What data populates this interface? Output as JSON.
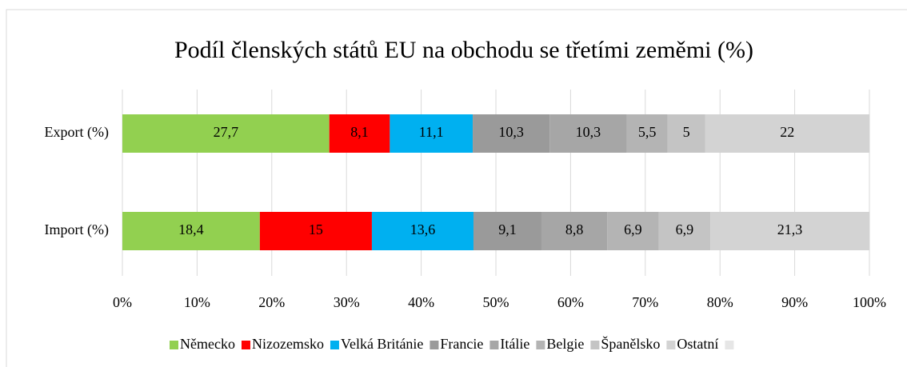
{
  "chart_data": {
    "type": "stacked-bar-horizontal",
    "title": "Podíl členských států EU na obchodu se třetími zeměmi (%)",
    "categories": [
      "Export (%)",
      "Import (%)"
    ],
    "series": [
      {
        "name": "Německo",
        "color": "#92d050",
        "values": [
          27.7,
          18.4
        ],
        "value_labels": [
          "27,7",
          "18,4"
        ]
      },
      {
        "name": "Nizozemsko",
        "color": "#ff0000",
        "values": [
          8.1,
          15
        ],
        "value_labels": [
          "8,1",
          "15"
        ]
      },
      {
        "name": "Velká Británie",
        "color": "#00b0f0",
        "values": [
          11.1,
          13.6
        ],
        "value_labels": [
          "11,1",
          "13,6"
        ]
      },
      {
        "name": "Francie",
        "color": "#9a9a9a",
        "values": [
          10.3,
          9.1
        ],
        "value_labels": [
          "10,3",
          "9,1"
        ]
      },
      {
        "name": "Itálie",
        "color": "#a6a6a6",
        "values": [
          10.3,
          8.8
        ],
        "value_labels": [
          "10,3",
          "8,8"
        ]
      },
      {
        "name": "Belgie",
        "color": "#b4b4b4",
        "values": [
          5.5,
          6.9
        ],
        "value_labels": [
          "5,5",
          "6,9"
        ]
      },
      {
        "name": "Španělsko",
        "color": "#c4c4c4",
        "values": [
          5,
          6.9
        ],
        "value_labels": [
          "5",
          "6,9"
        ]
      },
      {
        "name": "Ostatní",
        "color": "#d3d3d3",
        "values": [
          22,
          21.3
        ],
        "value_labels": [
          "22",
          "21,3"
        ]
      }
    ],
    "xlim": [
      0,
      100
    ],
    "xticks": [
      {
        "value": 0,
        "label": "0%"
      },
      {
        "value": 10,
        "label": "10%"
      },
      {
        "value": 20,
        "label": "20%"
      },
      {
        "value": 30,
        "label": "30%"
      },
      {
        "value": 40,
        "label": "40%"
      },
      {
        "value": 50,
        "label": "50%"
      },
      {
        "value": 60,
        "label": "60%"
      },
      {
        "value": 70,
        "label": "70%"
      },
      {
        "value": 80,
        "label": "80%"
      },
      {
        "value": 90,
        "label": "90%"
      },
      {
        "value": 100,
        "label": "100%"
      }
    ],
    "grid": true,
    "legend": "bottom"
  }
}
